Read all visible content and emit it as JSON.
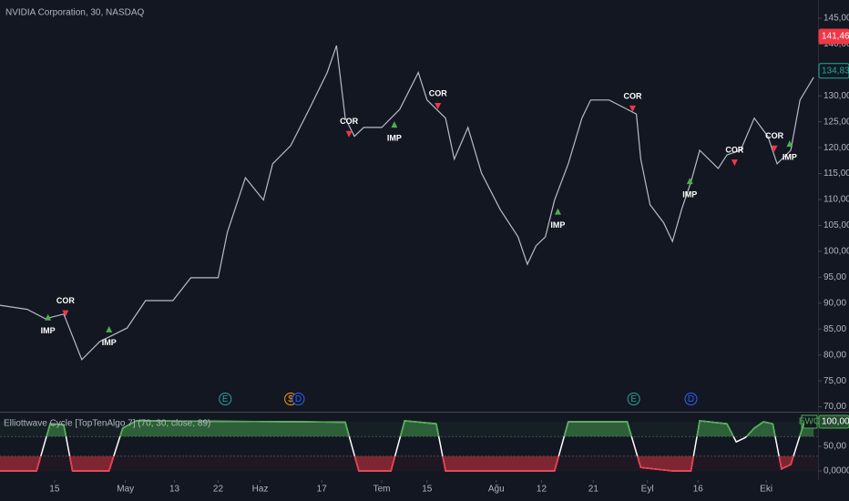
{
  "chart_data": [
    {
      "type": "line",
      "title": "NVIDIA Corporation, 30, NASDAQ",
      "color": "#b8bcc6",
      "x": [
        0,
        5,
        8.3,
        11.7,
        15,
        18.3,
        23.3,
        26.7,
        31.7,
        35,
        40,
        41.7,
        45,
        48.3,
        50,
        53.3,
        56.7,
        60,
        61.7,
        63.3,
        65,
        66.7,
        70,
        73.3,
        76.7,
        78.3,
        81.7,
        83.3,
        85.8,
        88.3,
        91.7,
        95,
        96.7,
        98.3,
        100,
        101.7,
        104.2,
        106.7,
        108.3,
        111.7,
        115,
        116.7,
        117.5,
        119.2,
        121.7,
        123.3,
        125,
        126.7,
        128.3,
        131.7,
        133.3,
        135.8,
        138.3,
        140.8,
        142.5,
        145,
        146.7,
        149.2
      ],
      "values": [
        89.6,
        88.8,
        87.0,
        87.9,
        79.1,
        82.6,
        85.2,
        90.5,
        90.5,
        94.9,
        94.9,
        103.7,
        114.2,
        109.9,
        116.9,
        120.4,
        127.4,
        134.5,
        139.7,
        125.7,
        122.2,
        123.9,
        123.9,
        127.4,
        134.5,
        129.2,
        125.7,
        117.8,
        123.9,
        115.1,
        108.1,
        102.8,
        97.5,
        101.1,
        102.8,
        109.9,
        116.9,
        125.7,
        129.2,
        129.2,
        127.4,
        126.5,
        117.8,
        109.0,
        105.5,
        101.9,
        108.1,
        113.4,
        119.5,
        116.0,
        118.6,
        119.5,
        125.7,
        122.2,
        116.9,
        119.5,
        129.2,
        133.6
      ],
      "xlim": [
        0,
        150
      ],
      "ylim": [
        69.4,
        148.5
      ],
      "yticks": [
        {
          "value": 70,
          "label": "70,00"
        },
        {
          "value": 75,
          "label": "75,00"
        },
        {
          "value": 80,
          "label": "80,00"
        },
        {
          "value": 85,
          "label": "85,00"
        },
        {
          "value": 90,
          "label": "90,00"
        },
        {
          "value": 95,
          "label": "95,00"
        },
        {
          "value": 100,
          "label": "100,00"
        },
        {
          "value": 105,
          "label": "105,00"
        },
        {
          "value": 110,
          "label": "110,00"
        },
        {
          "value": 115,
          "label": "115,00"
        },
        {
          "value": 120,
          "label": "120,00"
        },
        {
          "value": 125,
          "label": "125,00"
        },
        {
          "value": 130,
          "label": "130,00"
        },
        {
          "value": 135,
          "label": "135,00"
        },
        {
          "value": 140,
          "label": "140,00"
        },
        {
          "value": 145,
          "label": "145,00"
        }
      ],
      "signals": [
        {
          "label": "IMP",
          "x": 8.8,
          "price": 87.2
        },
        {
          "label": "COR",
          "x": 12,
          "price": 88.1
        },
        {
          "label": "IMP",
          "x": 20,
          "price": 84.9
        },
        {
          "label": "COR",
          "x": 64,
          "price": 122.7
        },
        {
          "label": "IMP",
          "x": 72.3,
          "price": 124.4
        },
        {
          "label": "COR",
          "x": 80.3,
          "price": 128.1
        },
        {
          "label": "IMP",
          "x": 102.3,
          "price": 107.6
        },
        {
          "label": "COR",
          "x": 116,
          "price": 127.6
        },
        {
          "label": "IMP",
          "x": 126.5,
          "price": 113.5
        },
        {
          "label": "COR",
          "x": 134.7,
          "price": 117.2
        },
        {
          "label": "COR",
          "x": 142,
          "price": 119.9
        },
        {
          "label": "IMP",
          "x": 144.8,
          "price": 120.7
        }
      ],
      "events": [
        {
          "label": "E",
          "x": 41.3,
          "color": "#26a69a"
        },
        {
          "label": "$",
          "x": 53.3,
          "color": "#ff9800"
        },
        {
          "label": "D",
          "x": 54.7,
          "color": "#2962ff"
        },
        {
          "label": "E",
          "x": 116.2,
          "color": "#26a69a"
        },
        {
          "label": "D",
          "x": 126.7,
          "color": "#2962ff"
        }
      ],
      "price_tags": [
        {
          "value": 141.46,
          "label": "141,46",
          "color": "#f23645"
        },
        {
          "value": 134.83,
          "label": "134,83",
          "color": "#22ab94"
        }
      ]
    },
    {
      "type": "oscillator",
      "title": "Elliottwave Cycle [TopTenAlgo 7] (70, 30, close, 89)",
      "x": [
        0,
        6.7,
        9.2,
        11.7,
        13.3,
        20,
        22.5,
        25,
        40,
        55,
        63.3,
        65.8,
        71.7,
        74.2,
        80,
        81.7,
        101.7,
        104.2,
        115,
        117.5,
        123.3,
        126.7,
        128.3,
        133.3,
        135,
        136.7,
        138.3,
        140,
        141.7,
        143.3,
        145,
        147.5,
        149.2
      ],
      "values": [
        0,
        0,
        96,
        94,
        0,
        0,
        87,
        102,
        101,
        100,
        99,
        0,
        0,
        102,
        96,
        0,
        0,
        100,
        100,
        7,
        0,
        0,
        102,
        96,
        59,
        68,
        87,
        100,
        96,
        4,
        13,
        100,
        100
      ],
      "levels": [
        70,
        30
      ],
      "line_color": "#ffffff",
      "up_color": "#4caf50",
      "down_color": "#f23645",
      "xlim": [
        0,
        150
      ],
      "ylim": [
        -18.5,
        118.5
      ],
      "yticks": [
        {
          "value": 0,
          "label": "0,0000"
        },
        {
          "value": 50,
          "label": "50,00"
        }
      ],
      "last_value": {
        "value": 100,
        "label": "100,00"
      },
      "tag": "EWC",
      "xticks": [
        {
          "value": 10,
          "label": "15"
        },
        {
          "value": 23,
          "label": "May"
        },
        {
          "value": 32,
          "label": "13"
        },
        {
          "value": 40,
          "label": "22"
        },
        {
          "value": 47.7,
          "label": "Haz"
        },
        {
          "value": 59,
          "label": "17"
        },
        {
          "value": 70,
          "label": "Tem"
        },
        {
          "value": 78.3,
          "label": "15"
        },
        {
          "value": 91,
          "label": "Ağu"
        },
        {
          "value": 99.3,
          "label": "12"
        },
        {
          "value": 108.8,
          "label": "21"
        },
        {
          "value": 118.7,
          "label": "Eyl"
        },
        {
          "value": 128,
          "label": "16"
        },
        {
          "value": 140.5,
          "label": "Eki"
        }
      ]
    }
  ]
}
